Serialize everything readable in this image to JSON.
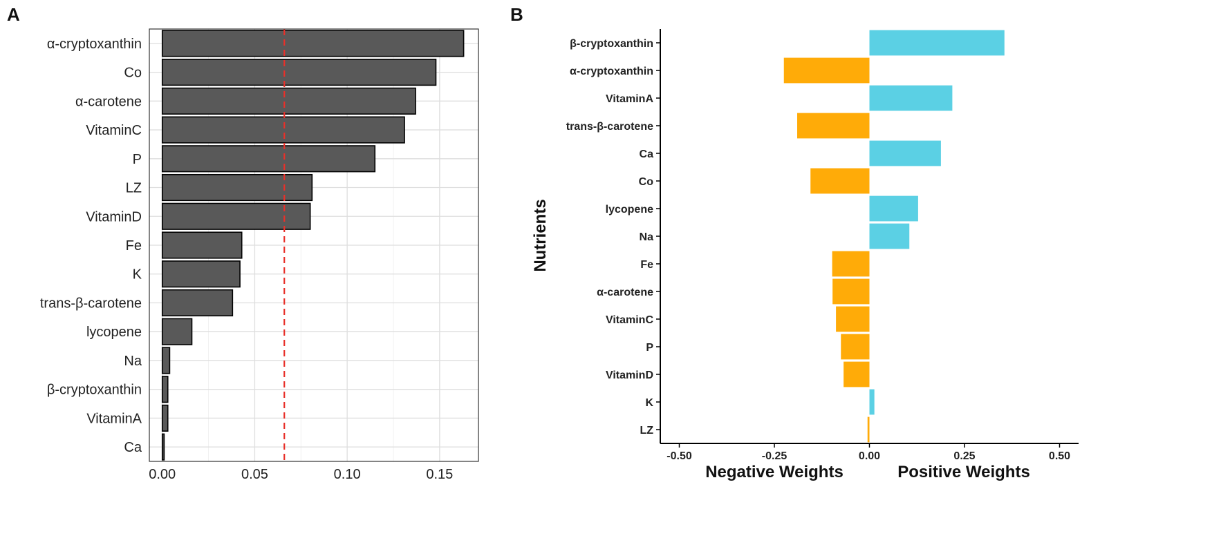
{
  "panel_a_label": "A",
  "panel_b_label": "B",
  "chart_data": [
    {
      "type": "bar",
      "orientation": "horizontal",
      "categories": [
        "α-cryptoxanthin",
        "Co",
        "α-carotene",
        "VitaminC",
        "P",
        "LZ",
        "VitaminD",
        "Fe",
        "K",
        "trans-β-carotene",
        "lycopene",
        "Na",
        "β-cryptoxanthin",
        "VitaminA",
        "Ca"
      ],
      "values": [
        0.163,
        0.148,
        0.137,
        0.131,
        0.115,
        0.081,
        0.08,
        0.043,
        0.042,
        0.038,
        0.016,
        0.004,
        0.003,
        0.003,
        0.001
      ],
      "reference_line": 0.066,
      "xticks": [
        "0.00",
        "0.05",
        "0.10",
        "0.15"
      ],
      "xlim": [
        -0.007,
        0.171
      ],
      "bar_color": "#595959",
      "reference_color": "#e8302a",
      "title": "",
      "xlabel": "",
      "ylabel": "",
      "grid": true
    },
    {
      "type": "bar",
      "orientation": "horizontal",
      "categories": [
        "β-cryptoxanthin",
        "α-cryptoxanthin",
        "VitaminA",
        "trans-β-carotene",
        "Ca",
        "Co",
        "lycopene",
        "Na",
        "Fe",
        "α-carotene",
        "VitaminC",
        "P",
        "VitaminD",
        "K",
        "LZ"
      ],
      "values": [
        0.355,
        -0.225,
        0.218,
        -0.19,
        0.188,
        -0.155,
        0.128,
        0.105,
        -0.098,
        -0.097,
        -0.088,
        -0.075,
        -0.068,
        0.013,
        -0.005
      ],
      "xticks": [
        "-0.50",
        "-0.25",
        "0.00",
        "0.25",
        "0.50"
      ],
      "xlim": [
        -0.55,
        0.55
      ],
      "ylabel": "Nutrients",
      "negative_label": "Negative Weights",
      "positive_label": "Positive Weights",
      "positive_color": "#5bd0e4",
      "negative_color": "#ffab08",
      "title": "",
      "grid": false
    }
  ]
}
